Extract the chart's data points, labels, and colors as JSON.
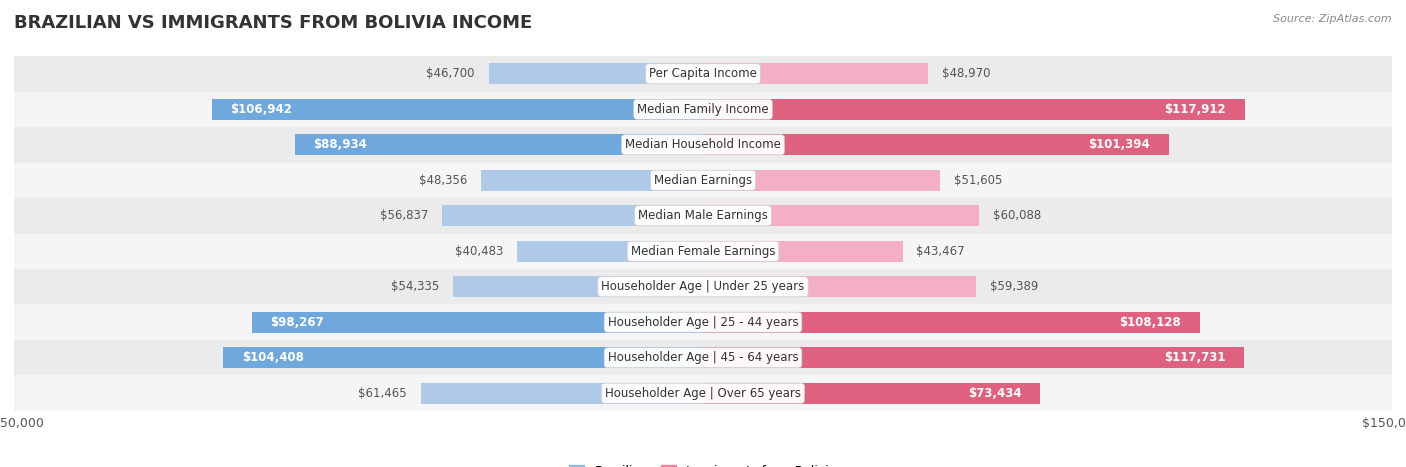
{
  "title": "BRAZILIAN VS IMMIGRANTS FROM BOLIVIA INCOME",
  "source": "Source: ZipAtlas.com",
  "categories": [
    "Per Capita Income",
    "Median Family Income",
    "Median Household Income",
    "Median Earnings",
    "Median Male Earnings",
    "Median Female Earnings",
    "Householder Age | Under 25 years",
    "Householder Age | 25 - 44 years",
    "Householder Age | 45 - 64 years",
    "Householder Age | Over 65 years"
  ],
  "brazilian_values": [
    46700,
    106942,
    88934,
    48356,
    56837,
    40483,
    54335,
    98267,
    104408,
    61465
  ],
  "bolivia_values": [
    48970,
    117912,
    101394,
    51605,
    60088,
    43467,
    59389,
    108128,
    117731,
    73434
  ],
  "brazilian_labels": [
    "$46,700",
    "$106,942",
    "$88,934",
    "$48,356",
    "$56,837",
    "$40,483",
    "$54,335",
    "$98,267",
    "$104,408",
    "$61,465"
  ],
  "bolivia_labels": [
    "$48,970",
    "$117,912",
    "$101,394",
    "$51,605",
    "$60,088",
    "$43,467",
    "$59,389",
    "$108,128",
    "$117,731",
    "$73,434"
  ],
  "max_value": 150000,
  "bar_height": 0.58,
  "blue_light": "#afc9e8",
  "blue_mid": "#6fa8dc",
  "pink_light": "#f4afc8",
  "pink_mid": "#e06080",
  "row_colors": [
    "#ebebeb",
    "#f5f5f5"
  ],
  "label_fontsize": 8.5,
  "title_fontsize": 13,
  "category_fontsize": 8.5,
  "legend_blue": "#90b8e0",
  "legend_pink": "#f080a0",
  "white_label_threshold": 65000
}
